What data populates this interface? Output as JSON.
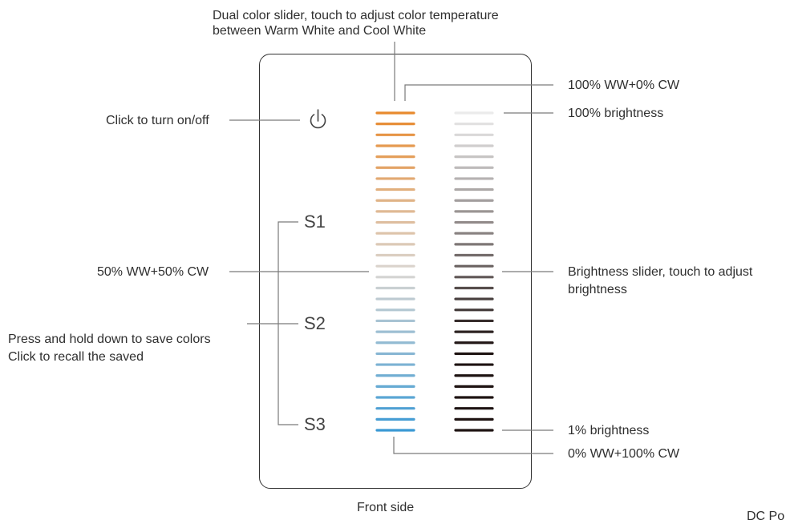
{
  "top_caption": {
    "line1": "Dual color slider, touch to adjust color temperature",
    "line2": "between Warm White and Cool White"
  },
  "left_labels": {
    "power": "Click to turn on/off",
    "mid": "50% WW+50% CW",
    "scene_line1": "Press and hold down to save colors",
    "scene_line2": "Click to recall the saved"
  },
  "right_labels": {
    "top_ww": "100% WW+0% CW",
    "top_bright": "100% brightness",
    "bright_line1": "Brightness slider, touch to adjust",
    "bright_line2": "brightness",
    "bottom_bright": "1% brightness",
    "bottom_cw": "0% WW+100% CW"
  },
  "scene_buttons": {
    "s1": "S1",
    "s2": "S2",
    "s3": "S3"
  },
  "icons": {
    "power": "power-icon"
  },
  "bottom": {
    "front_side": "Front side",
    "dc_power": "DC Po"
  },
  "slider": {
    "segment_count": 30,
    "color_warm": "#e88a2e",
    "color_mid": "#d9d6d2",
    "color_cool": "#3a99d4",
    "bright_top": "#ebebeb",
    "bright_mid": "#8b8483",
    "bright_bottom": "#1e1312"
  },
  "colors": {
    "leader_line": "#7a7a7a",
    "panel_border": "#333333"
  }
}
